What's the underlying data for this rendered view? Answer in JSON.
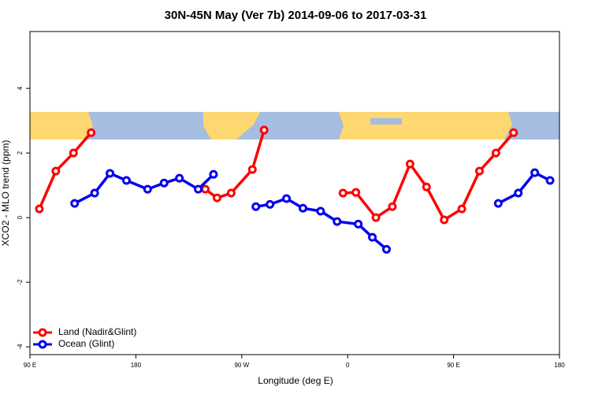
{
  "chart_data": {
    "type": "line",
    "title": "30N-45N May (Ver 7b)   2014-09-06 to 2017-03-31",
    "x_label": "Longitude (deg E)",
    "y_label": "XCO2 - MLO trend (ppm)",
    "xlim": [
      90,
      540
    ],
    "xticks": [
      {
        "value": 90,
        "label": "90 E"
      },
      180,
      {
        "value": 270,
        "label": "90 W"
      },
      {
        "value": 360,
        "label": "0"
      },
      {
        "value": 450,
        "label": "90 E"
      },
      {
        "value": 540,
        "label": "180"
      }
    ],
    "ylim": [
      -4.24,
      5.76
    ],
    "yticks": [
      -4,
      -2,
      0,
      2,
      4
    ],
    "legend": "bottomleft",
    "series": [
      {
        "name": "Land (Nadir&Glint)",
        "color": "#ff0000",
        "x": [
          98,
          112,
          127,
          142,
          null,
          239,
          249,
          261,
          279,
          289,
          null,
          356,
          367,
          384,
          398,
          413,
          427,
          442,
          457,
          472,
          486,
          501
        ],
        "values": [
          0.27,
          1.44,
          2.0,
          2.63,
          null,
          0.88,
          0.61,
          0.76,
          1.49,
          2.71,
          null,
          0.76,
          0.78,
          0.0,
          0.34,
          1.66,
          0.95,
          -0.07,
          0.27,
          1.44,
          2.0,
          2.63
        ]
      },
      {
        "name": "Ocean (Glint)",
        "color": "#0000ee",
        "x": [
          128,
          145,
          158,
          172,
          190,
          204,
          217,
          233,
          246,
          null,
          282,
          294,
          308,
          322,
          337,
          351,
          369,
          381,
          393,
          null,
          488,
          505,
          519,
          532
        ],
        "values": [
          0.44,
          0.76,
          1.37,
          1.15,
          0.88,
          1.07,
          1.22,
          0.88,
          1.34,
          null,
          0.34,
          0.41,
          0.59,
          0.29,
          0.2,
          -0.12,
          -0.2,
          -0.61,
          -0.98,
          null,
          0.44,
          0.76,
          1.39,
          1.15
        ]
      }
    ]
  }
}
